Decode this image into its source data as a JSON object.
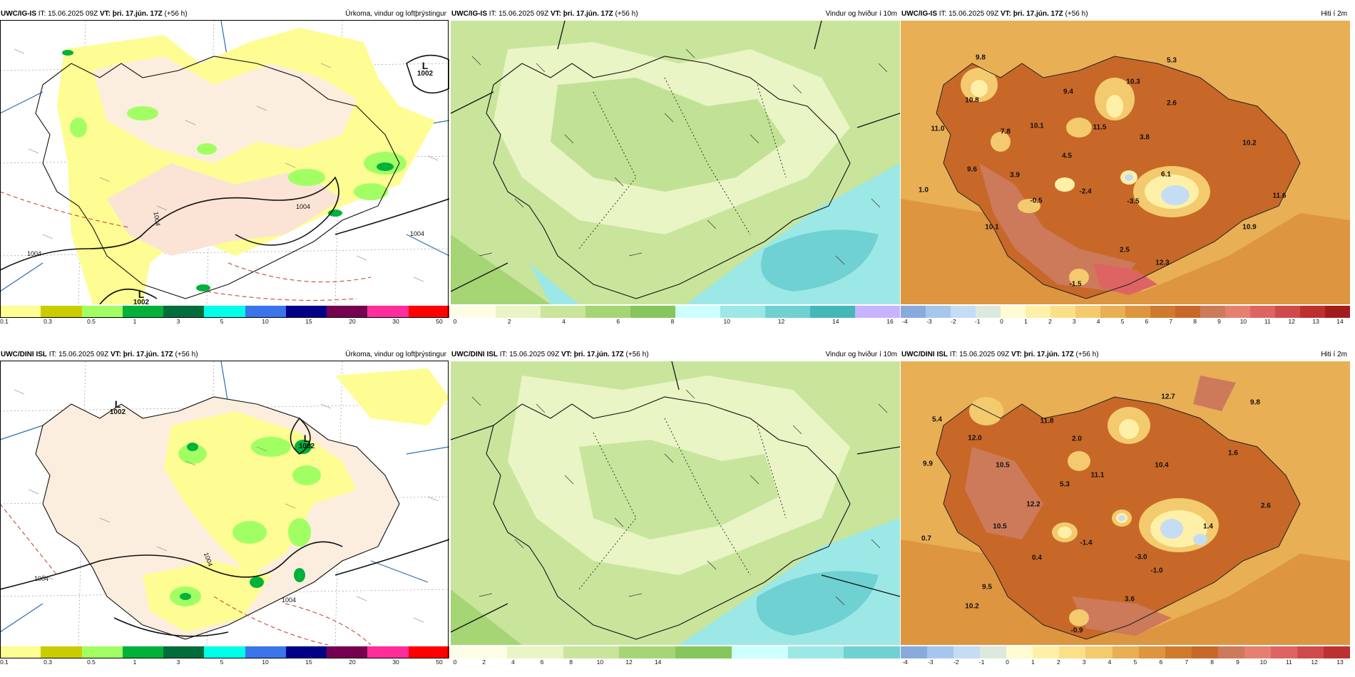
{
  "colors": {
    "precip": [
      "#fdfd93",
      "#cbcc00",
      "#a2ff63",
      "#00b23a",
      "#006d3b",
      "#00ffe6",
      "#3c74ec",
      "#000087",
      "#760050",
      "#ff2d9a",
      "#ff0000"
    ],
    "wind": [
      "#fefee6",
      "#e9f5c4",
      "#c9e59c",
      "#a6d575",
      "#86c65c",
      "#ccffff",
      "#9ce8e6",
      "#6fd1d1",
      "#45b7b7",
      "#c8b3ff"
    ],
    "temp": [
      "#88aadd",
      "#a6c6ee",
      "#c4ddf5",
      "#dde9dd",
      "#fffbd2",
      "#fff0a8",
      "#fbe08a",
      "#f3ca6e",
      "#e8af55",
      "#dd9540",
      "#d07a30",
      "#c86828",
      "#cd7a5a",
      "#e58070",
      "#de6464",
      "#cf4b4b",
      "#bd3030",
      "#a31c1c"
    ]
  },
  "panels": [
    {
      "model": "UWC/IG-IS",
      "it_label": " IT: ",
      "it_value": "15.06.2025 09Z",
      "vt_label": " VT: ",
      "vt_value": "þri. 17.jún. 17Z",
      "lead": " (+56 h)",
      "product": "Úrkoma, vindur og loftþrýstingur",
      "ticks": [
        "0.1",
        "0.3",
        "0.5",
        "1",
        "3",
        "5",
        "10",
        "15",
        "20",
        "30",
        "50"
      ],
      "lows": [
        {
          "L": "L",
          "p": "1002"
        },
        {
          "L": "L",
          "p": "1002"
        }
      ],
      "isobars": [
        "1004",
        "1004",
        "1004",
        "1004"
      ]
    },
    {
      "model": "UWC/IG-IS",
      "it_label": " IT: ",
      "it_value": "15.06.2025 09Z",
      "vt_label": " VT: ",
      "vt_value": "þri. 17.jún. 17Z",
      "lead": " (+56 h)",
      "product": "Vindur og hviður í 10m",
      "ticks": [
        "0",
        "2",
        "4",
        "6",
        "8",
        "10",
        "12",
        "14",
        "16"
      ]
    },
    {
      "model": "UWC/IG-IS",
      "it_label": " IT: ",
      "it_value": "15.06.2025 09Z",
      "vt_label": " VT: ",
      "vt_value": "þri. 17.jún. 17Z",
      "lead": " (+56 h)",
      "product": "Hiti í 2m",
      "ticks": [
        "-4",
        "-3",
        "-2",
        "-1",
        "0",
        "1",
        "2",
        "3",
        "4",
        "5",
        "6",
        "7",
        "8",
        "9",
        "10",
        "11",
        "12",
        "13",
        "14"
      ],
      "temps": [
        "9.8",
        "5.3",
        "10.3",
        "10.8",
        "9.4",
        "2.6",
        "11.0",
        "7.8",
        "10.1",
        "11.5",
        "3.8",
        "10.2",
        "4.5",
        "9.6",
        "3.9",
        "6.1",
        "1.0",
        "-0.5",
        "-2.4",
        "11.6",
        "-3.5",
        "10.1",
        "10.9",
        "2.5",
        "12.3",
        "-1.5"
      ]
    },
    {
      "model": "UWC/DINI ISL",
      "it_label": " IT: ",
      "it_value": "15.06.2025 09Z",
      "vt_label": " VT: ",
      "vt_value": "þri. 17.jún. 17Z",
      "lead": " (+56 h)",
      "product": "Úrkoma, vindur og loftþrýstingur",
      "ticks": [
        "0.1",
        "0.3",
        "0.5",
        "1",
        "3",
        "5",
        "10",
        "15",
        "20",
        "30",
        "50"
      ],
      "lows": [
        {
          "L": "L",
          "p": "1002"
        },
        {
          "L": "L",
          "p": "1002"
        }
      ],
      "isobars": [
        "1004",
        "1004",
        "1004"
      ]
    },
    {
      "model": "UWC/DINI ISL",
      "it_label": " IT: ",
      "it_value": "15.06.2025 09Z",
      "vt_label": " VT: ",
      "vt_value": "þri. 17.jún. 17Z",
      "lead": " (+56 h)",
      "product": "Vindur og hviður í 10m",
      "ticks": [
        "0",
        "2",
        "4",
        "6",
        "8",
        "10",
        "12",
        "14"
      ]
    },
    {
      "model": "UWC/DINI ISL",
      "it_label": " IT: ",
      "it_value": "15.06.2025 09Z",
      "vt_label": " VT: ",
      "vt_value": "þri. 17.jún. 17Z",
      "lead": " (+56 h)",
      "product": "Hiti í 2m",
      "ticks": [
        "-4",
        "-3",
        "-2",
        "-1",
        "0",
        "1",
        "2",
        "3",
        "4",
        "5",
        "6",
        "7",
        "8",
        "9",
        "10",
        "11",
        "12",
        "13"
      ],
      "temps": [
        "12.7",
        "9.8",
        "5.4",
        "11.8",
        "12.0",
        "2.0",
        "1.6",
        "9.9",
        "10.5",
        "11.1",
        "10.4",
        "5.3",
        "12.2",
        "2.6",
        "10.5",
        "1.4",
        "0.7",
        "-1.4",
        "-3.0",
        "0.4",
        "-1.0",
        "9.5",
        "3.6",
        "10.2",
        "-0.9"
      ]
    }
  ]
}
